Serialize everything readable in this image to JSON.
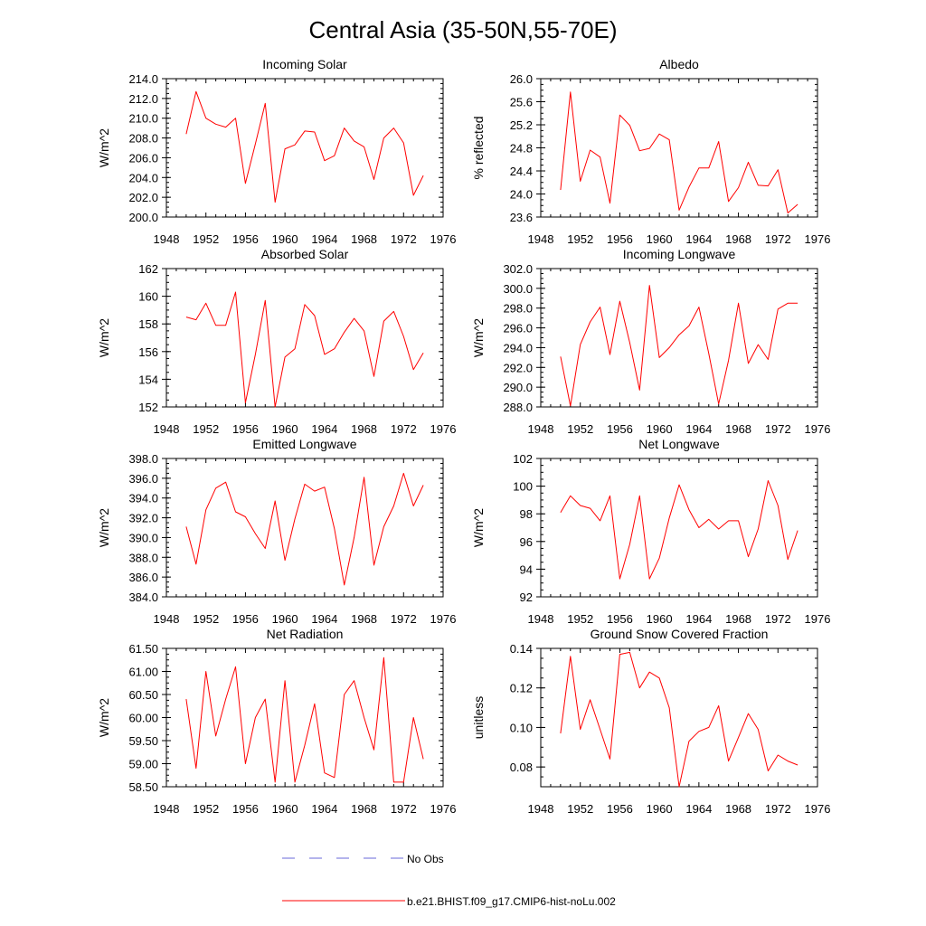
{
  "title": "Central Asia (35-50N,55-70E)",
  "colors": {
    "model": "#ff0000",
    "obs": "#6a6ad8",
    "axis": "#000000"
  },
  "legend": {
    "obs_label": "No Obs",
    "model_label": "b.e21.BHIST.f09_g17.CMIP6-hist-noLu.002"
  },
  "chart_data": [
    {
      "type": "line",
      "title": "Incoming Solar",
      "ylabel": "W/m^2",
      "xlim": [
        1948,
        1976
      ],
      "ylim": [
        200,
        214
      ],
      "xticks": [
        "1948",
        "1952",
        "1956",
        "1960",
        "1964",
        "1968",
        "1972",
        "1976"
      ],
      "yticks": [
        "200.0",
        "202.0",
        "204.0",
        "206.0",
        "208.0",
        "210.0",
        "212.0",
        "214.0"
      ],
      "x": [
        1950,
        1951,
        1952,
        1953,
        1954,
        1955,
        1956,
        1957,
        1958,
        1959,
        1960,
        1961,
        1962,
        1963,
        1964,
        1965,
        1966,
        1967,
        1968,
        1969,
        1970,
        1971,
        1972,
        1973,
        1974
      ],
      "series": [
        {
          "name": "b.e21.BHIST.f09_g17.CMIP6-hist-noLu.002",
          "values": [
            208.4,
            212.7,
            210.0,
            209.4,
            209.1,
            210.0,
            203.4,
            207.4,
            211.5,
            201.5,
            206.9,
            207.3,
            208.7,
            208.6,
            205.7,
            206.2,
            209.0,
            207.7,
            207.1,
            203.8,
            208.0,
            209.0,
            207.5,
            202.2,
            204.2
          ]
        }
      ]
    },
    {
      "type": "line",
      "title": "Albedo",
      "ylabel": "% reflected",
      "xlim": [
        1948,
        1976
      ],
      "ylim": [
        23.6,
        26.0
      ],
      "xticks": [
        "1948",
        "1952",
        "1956",
        "1960",
        "1964",
        "1968",
        "1972",
        "1976"
      ],
      "yticks": [
        "23.6",
        "24.0",
        "24.4",
        "24.8",
        "25.2",
        "25.6",
        "26.0"
      ],
      "x": [
        1950,
        1951,
        1952,
        1953,
        1954,
        1955,
        1956,
        1957,
        1958,
        1959,
        1960,
        1961,
        1962,
        1963,
        1964,
        1965,
        1966,
        1967,
        1968,
        1969,
        1970,
        1971,
        1972,
        1973,
        1974
      ],
      "series": [
        {
          "name": "b.e21.BHIST.f09_g17.CMIP6-hist-noLu.002",
          "values": [
            24.07,
            25.77,
            24.22,
            24.76,
            24.64,
            23.84,
            25.37,
            25.19,
            24.75,
            24.79,
            25.04,
            24.94,
            23.72,
            24.12,
            24.45,
            24.45,
            24.91,
            23.87,
            24.11,
            24.55,
            24.15,
            24.14,
            24.42,
            23.67,
            23.82
          ]
        }
      ]
    },
    {
      "type": "line",
      "title": "Absorbed Solar",
      "ylabel": "W/m^2",
      "xlim": [
        1948,
        1976
      ],
      "ylim": [
        152,
        162
      ],
      "xticks": [
        "1948",
        "1952",
        "1956",
        "1960",
        "1964",
        "1968",
        "1972",
        "1976"
      ],
      "yticks": [
        "152",
        "154",
        "156",
        "158",
        "160",
        "162"
      ],
      "x": [
        1950,
        1951,
        1952,
        1953,
        1954,
        1955,
        1956,
        1957,
        1958,
        1959,
        1960,
        1961,
        1962,
        1963,
        1964,
        1965,
        1966,
        1967,
        1968,
        1969,
        1970,
        1971,
        1972,
        1973,
        1974
      ],
      "series": [
        {
          "name": "b.e21.BHIST.f09_g17.CMIP6-hist-noLu.002",
          "values": [
            158.5,
            158.3,
            159.5,
            157.9,
            157.9,
            160.3,
            152.3,
            155.8,
            159.7,
            152.0,
            155.6,
            156.2,
            159.4,
            158.6,
            155.8,
            156.2,
            157.4,
            158.4,
            157.5,
            154.2,
            158.2,
            158.9,
            157.1,
            154.7,
            155.9
          ]
        }
      ]
    },
    {
      "type": "line",
      "title": "Incoming Longwave",
      "ylabel": "W/m^2",
      "xlim": [
        1948,
        1976
      ],
      "ylim": [
        288,
        302
      ],
      "xticks": [
        "1948",
        "1952",
        "1956",
        "1960",
        "1964",
        "1968",
        "1972",
        "1976"
      ],
      "yticks": [
        "288.0",
        "290.0",
        "292.0",
        "294.0",
        "296.0",
        "298.0",
        "300.0",
        "302.0"
      ],
      "x": [
        1950,
        1951,
        1952,
        1953,
        1954,
        1955,
        1956,
        1957,
        1958,
        1959,
        1960,
        1961,
        1962,
        1963,
        1964,
        1965,
        1966,
        1967,
        1968,
        1969,
        1970,
        1971,
        1972,
        1973,
        1974
      ],
      "series": [
        {
          "name": "b.e21.BHIST.f09_g17.CMIP6-hist-noLu.002",
          "values": [
            293.1,
            288.1,
            294.3,
            296.6,
            298.1,
            293.3,
            298.7,
            294.5,
            289.7,
            300.3,
            293.0,
            294.0,
            295.3,
            296.2,
            298.1,
            293.4,
            288.3,
            292.7,
            298.5,
            292.4,
            294.3,
            292.8,
            297.9,
            298.5,
            298.5
          ]
        }
      ]
    },
    {
      "type": "line",
      "title": "Emitted Longwave",
      "ylabel": "W/m^2",
      "xlim": [
        1948,
        1976
      ],
      "ylim": [
        384,
        398
      ],
      "xticks": [
        "1948",
        "1952",
        "1956",
        "1960",
        "1964",
        "1968",
        "1972",
        "1976"
      ],
      "yticks": [
        "384.0",
        "386.0",
        "388.0",
        "390.0",
        "392.0",
        "394.0",
        "396.0",
        "398.0"
      ],
      "x": [
        1950,
        1951,
        1952,
        1953,
        1954,
        1955,
        1956,
        1957,
        1958,
        1959,
        1960,
        1961,
        1962,
        1963,
        1964,
        1965,
        1966,
        1967,
        1968,
        1969,
        1970,
        1971,
        1972,
        1973,
        1974
      ],
      "series": [
        {
          "name": "b.e21.BHIST.f09_g17.CMIP6-hist-noLu.002",
          "values": [
            391.1,
            387.3,
            392.8,
            395.0,
            395.6,
            392.6,
            392.1,
            390.4,
            388.9,
            393.7,
            387.7,
            391.9,
            395.4,
            394.7,
            395.1,
            390.9,
            385.2,
            390.0,
            396.1,
            387.2,
            391.1,
            393.2,
            396.5,
            393.2,
            395.3
          ]
        }
      ]
    },
    {
      "type": "line",
      "title": "Net Longwave",
      "ylabel": "W/m^2",
      "xlim": [
        1948,
        1976
      ],
      "ylim": [
        92,
        102
      ],
      "xticks": [
        "1948",
        "1952",
        "1956",
        "1960",
        "1964",
        "1968",
        "1972",
        "1976"
      ],
      "yticks": [
        "92",
        "94",
        "96",
        "98",
        "100",
        "102"
      ],
      "x": [
        1950,
        1951,
        1952,
        1953,
        1954,
        1955,
        1956,
        1957,
        1958,
        1959,
        1960,
        1961,
        1962,
        1963,
        1964,
        1965,
        1966,
        1967,
        1968,
        1969,
        1970,
        1971,
        1972,
        1973,
        1974
      ],
      "series": [
        {
          "name": "b.e21.BHIST.f09_g17.CMIP6-hist-noLu.002",
          "values": [
            98.1,
            99.3,
            98.6,
            98.4,
            97.5,
            99.3,
            93.3,
            95.8,
            99.3,
            93.3,
            94.8,
            97.7,
            100.1,
            98.3,
            97.0,
            97.6,
            96.9,
            97.5,
            97.5,
            94.9,
            96.9,
            100.4,
            98.6,
            94.7,
            96.8
          ]
        }
      ]
    },
    {
      "type": "line",
      "title": "Net Radiation",
      "ylabel": "W/m^2",
      "xlim": [
        1948,
        1976
      ],
      "ylim": [
        58.5,
        61.5
      ],
      "xticks": [
        "1948",
        "1952",
        "1956",
        "1960",
        "1964",
        "1968",
        "1972",
        "1976"
      ],
      "yticks": [
        "58.50",
        "59.00",
        "59.50",
        "60.00",
        "60.50",
        "61.00",
        "61.50"
      ],
      "x": [
        1950,
        1951,
        1952,
        1953,
        1954,
        1955,
        1956,
        1957,
        1958,
        1959,
        1960,
        1961,
        1962,
        1963,
        1964,
        1965,
        1966,
        1967,
        1968,
        1969,
        1970,
        1971,
        1972,
        1973,
        1974
      ],
      "series": [
        {
          "name": "b.e21.BHIST.f09_g17.CMIP6-hist-noLu.002",
          "values": [
            60.4,
            58.9,
            61.0,
            59.6,
            60.4,
            61.1,
            59.0,
            60.0,
            60.4,
            58.6,
            60.8,
            58.6,
            59.4,
            60.3,
            58.8,
            58.7,
            60.5,
            60.8,
            60.0,
            59.3,
            61.3,
            58.6,
            58.6,
            60.0,
            59.1
          ]
        }
      ]
    },
    {
      "type": "line",
      "title": "Ground Snow Covered Fraction",
      "ylabel": "unitless",
      "xlim": [
        1948,
        1976
      ],
      "ylim": [
        0.07,
        0.14
      ],
      "xticks": [
        "1948",
        "1952",
        "1956",
        "1960",
        "1964",
        "1968",
        "1972",
        "1976"
      ],
      "yticks": [
        "0.08",
        "0.10",
        "0.12",
        "0.14"
      ],
      "ytick_values": [
        0.08,
        0.1,
        0.12,
        0.14
      ],
      "x": [
        1950,
        1951,
        1952,
        1953,
        1954,
        1955,
        1956,
        1957,
        1958,
        1959,
        1960,
        1961,
        1962,
        1963,
        1964,
        1965,
        1966,
        1967,
        1968,
        1969,
        1970,
        1971,
        1972,
        1973,
        1974
      ],
      "series": [
        {
          "name": "b.e21.BHIST.f09_g17.CMIP6-hist-noLu.002",
          "values": [
            0.097,
            0.136,
            0.099,
            0.114,
            0.099,
            0.084,
            0.137,
            0.138,
            0.12,
            0.128,
            0.125,
            0.11,
            0.07,
            0.093,
            0.098,
            0.1,
            0.111,
            0.083,
            0.095,
            0.107,
            0.099,
            0.078,
            0.086,
            0.083,
            0.081
          ]
        }
      ]
    }
  ]
}
